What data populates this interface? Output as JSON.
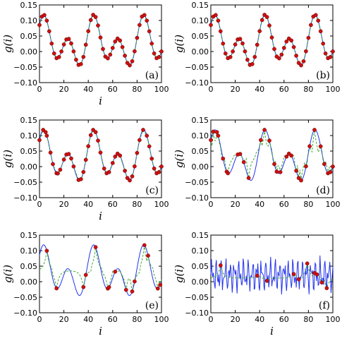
{
  "colors": {
    "signal": "#2233ee",
    "interp": "#44aa33",
    "sample": "#cc1111"
  },
  "chart_data": [
    {
      "type": "line",
      "panel_label": "(a)",
      "xlabel": "i",
      "ylabel": "g(i)",
      "xlim": [
        0,
        100
      ],
      "ylim": [
        -0.1,
        0.15
      ],
      "xticks": [
        "0",
        "20",
        "40",
        "60",
        "80",
        "100"
      ],
      "yticks": [
        "−0.10",
        "−0.05",
        "0.00",
        "0.05",
        "0.10",
        "0.15"
      ],
      "samples_x": [
        0,
        2,
        4,
        6,
        8,
        10,
        12,
        14,
        16,
        18,
        20,
        22,
        24,
        26,
        28,
        30,
        32,
        34,
        36,
        38,
        40,
        42,
        44,
        46,
        48,
        50,
        52,
        54,
        56,
        58,
        60,
        62,
        64,
        66,
        68,
        70,
        72,
        74,
        76,
        78,
        80,
        82,
        84,
        86,
        88,
        90,
        92,
        94,
        96,
        98,
        100
      ],
      "interp": "linear"
    },
    {
      "type": "line",
      "panel_label": "(b)",
      "xlabel": "",
      "ylabel": "g(i)",
      "xlim": [
        0,
        100
      ],
      "ylim": [
        -0.1,
        0.15
      ],
      "xticks": [
        "0",
        "20",
        "40",
        "60",
        "80",
        "100"
      ],
      "yticks": [
        "−0.10",
        "−0.05",
        "0.00",
        "0.05",
        "0.10",
        "0.15"
      ],
      "samples_x": [
        0,
        2,
        4,
        6,
        8,
        10,
        12,
        14,
        16,
        18,
        20,
        22,
        24,
        26,
        28,
        30,
        32,
        34,
        36,
        38,
        40,
        42,
        44,
        46,
        48,
        50,
        52,
        54,
        56,
        58,
        60,
        62,
        64,
        66,
        68,
        70,
        72,
        74,
        76,
        78,
        80,
        82,
        84,
        86,
        88,
        90,
        92,
        94,
        96,
        98,
        100
      ],
      "interp": "linear"
    },
    {
      "type": "line",
      "panel_label": "(c)",
      "xlabel": "i",
      "ylabel": "g(i)",
      "xlim": [
        0,
        100
      ],
      "ylim": [
        -0.1,
        0.15
      ],
      "xticks": [
        "0",
        "20",
        "40",
        "60",
        "80",
        "100"
      ],
      "yticks": [
        "−0.10",
        "−0.05",
        "0.00",
        "0.05",
        "0.10",
        "0.15"
      ],
      "samples_x": [
        0,
        3,
        5,
        6,
        9,
        11,
        14,
        15,
        17,
        20,
        22,
        24,
        26,
        28,
        32,
        34,
        36,
        38,
        40,
        42,
        44,
        46,
        48,
        50,
        53,
        55,
        57,
        60,
        62,
        64,
        66,
        70,
        72,
        74,
        76,
        78,
        80,
        82,
        85,
        88,
        90,
        92,
        94,
        96,
        98,
        100
      ],
      "interp": "linear"
    },
    {
      "type": "line",
      "panel_label": "(d)",
      "xlabel": "",
      "ylabel": "g(i)",
      "xlim": [
        0,
        100
      ],
      "ylim": [
        -0.1,
        0.15
      ],
      "xticks": [
        "0",
        "20",
        "40",
        "60",
        "80",
        "100"
      ],
      "yticks": [
        "−0.10",
        "−0.05",
        "0.00",
        "0.05",
        "0.10",
        "0.15"
      ],
      "samples_x": [
        0,
        2,
        5,
        6,
        10,
        13,
        14,
        22,
        24,
        27,
        31,
        41,
        44,
        48,
        52,
        54,
        57,
        62,
        64,
        66,
        70,
        72,
        74,
        78,
        81,
        85,
        90,
        93,
        96,
        98,
        100
      ],
      "interp": "sparse"
    },
    {
      "type": "line",
      "panel_label": "(e)",
      "xlabel": "i",
      "ylabel": "g(i)",
      "xlim": [
        0,
        100
      ],
      "ylim": [
        -0.1,
        0.15
      ],
      "xticks": [
        "0",
        "20",
        "40",
        "60",
        "80",
        "100"
      ],
      "yticks": [
        "−0.10",
        "−0.05",
        "0.00",
        "0.05",
        "0.10",
        "0.15"
      ],
      "samples_x": [
        6,
        14,
        36,
        38,
        46,
        56,
        57,
        62,
        71,
        76,
        78,
        86,
        89,
        97,
        99
      ],
      "interp": "sparse"
    },
    {
      "type": "line",
      "panel_label": "(f)",
      "xlabel": "i",
      "ylabel": "g(i)",
      "xlim": [
        0,
        100
      ],
      "ylim": [
        -0.1,
        0.15
      ],
      "xticks": [
        "0",
        "20",
        "40",
        "60",
        "80",
        "100"
      ],
      "yticks": [
        "−0.10",
        "−0.05",
        "0.00",
        "0.05",
        "0.10",
        "0.15"
      ],
      "samples_x": [
        8,
        38,
        46,
        68,
        72,
        79,
        85,
        87,
        91,
        95
      ],
      "interp": "noisy"
    }
  ]
}
